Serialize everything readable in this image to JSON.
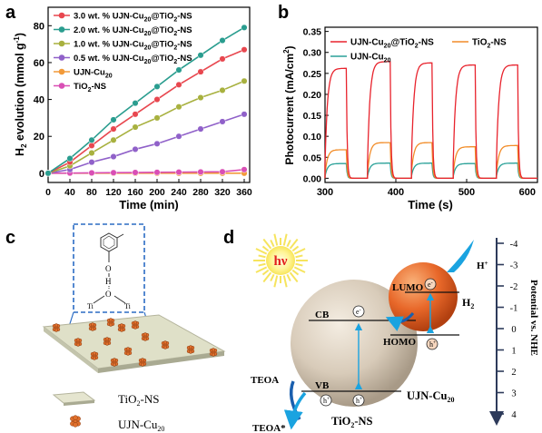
{
  "panels": {
    "a": "a",
    "b": "b",
    "c": "c",
    "d": "d"
  },
  "chart_data": [
    {
      "panel": "a",
      "type": "line",
      "xlabel": "Time (min)",
      "ylabel_main": "H",
      "ylabel_sub": "2",
      "ylabel_rest": " evolution (mmol g",
      "ylabel_sup": "-1",
      "ylabel_end": ")",
      "xlim": [
        0,
        370
      ],
      "ylim": [
        -5,
        90
      ],
      "xticks": [
        "0",
        "40",
        "80",
        "120",
        "160",
        "200",
        "240",
        "280",
        "320",
        "360"
      ],
      "yticks": [
        "0",
        "20",
        "40",
        "60",
        "80"
      ],
      "x": [
        0,
        40,
        80,
        120,
        160,
        200,
        240,
        280,
        320,
        360
      ],
      "series": [
        {
          "name_main": "3.0 wt. % UJN-Cu",
          "name_sub": "20",
          "name_rest": "@TiO",
          "name_sub2": "2",
          "name_end": "-NS",
          "color": "#e8474f",
          "values": [
            0,
            6,
            15,
            24,
            32,
            40,
            48,
            55,
            62,
            67
          ]
        },
        {
          "name_main": "2.0 wt. % UJN-Cu",
          "name_sub": "20",
          "name_rest": "@TiO",
          "name_sub2": "2",
          "name_end": "-NS",
          "color": "#2a9d8f",
          "values": [
            0,
            8,
            18,
            29,
            38,
            47,
            56,
            64,
            72,
            79
          ]
        },
        {
          "name_main": "1.0 wt. % UJN-Cu",
          "name_sub": "20",
          "name_rest": "@TiO",
          "name_sub2": "2",
          "name_end": "-NS",
          "color": "#a8b13f",
          "values": [
            0,
            4,
            11,
            18,
            25,
            30,
            36,
            41,
            45,
            50
          ]
        },
        {
          "name_main": "0.5 wt. % UJN-Cu",
          "name_sub": "20",
          "name_rest": "@TiO",
          "name_sub2": "2",
          "name_end": "-NS",
          "color": "#9061c9",
          "values": [
            0,
            2,
            6,
            9,
            13,
            16,
            20,
            24,
            28,
            32
          ]
        },
        {
          "name_main": "UJN-Cu",
          "name_sub": "20",
          "name_rest": "",
          "name_sub2": "",
          "name_end": "",
          "color": "#f29a3a",
          "values": [
            0,
            0,
            0,
            0,
            0,
            0,
            0,
            0,
            0,
            0
          ]
        },
        {
          "name_main": "TiO",
          "name_sub": "2",
          "name_rest": "-NS",
          "name_sub2": "",
          "name_end": "",
          "color": "#d94fb5",
          "values": [
            0,
            0.1,
            0.2,
            0.3,
            0.4,
            0.5,
            0.6,
            0.7,
            0.8,
            2
          ]
        }
      ]
    },
    {
      "panel": "b",
      "type": "line",
      "xlabel": "Time (s)",
      "ylabel": "Photocurrent (mA/cm",
      "ylabel_sup": "2",
      "ylabel_end": ")",
      "xlim": [
        300,
        600
      ],
      "ylim": [
        -0.01,
        0.36
      ],
      "xticks": [
        "300",
        "400",
        "500",
        "600"
      ],
      "yticks": [
        "0.00",
        "0.05",
        "0.10",
        "0.15",
        "0.20",
        "0.25",
        "0.30",
        "0.35"
      ],
      "on_intervals": [
        [
          300,
          330
        ],
        [
          360,
          392
        ],
        [
          422,
          451
        ],
        [
          481,
          512
        ],
        [
          542,
          572
        ]
      ],
      "series": [
        {
          "name_main": "UJN-Cu",
          "name_sub": "20",
          "name_rest": "@TiO",
          "name_sub2": "2",
          "name_end": "-NS",
          "color": "#e8232d",
          "plateau": [
            0.262,
            0.278,
            0.275,
            0.27,
            0.27
          ]
        },
        {
          "name_main": "TiO",
          "name_sub": "2",
          "name_rest": "-NS",
          "name_sub2": "",
          "name_end": "",
          "color": "#f28c28",
          "plateau": [
            0.068,
            0.085,
            0.085,
            0.075,
            0.078
          ]
        },
        {
          "name_main": "UJN-Cu",
          "name_sub": "20",
          "name_rest": "",
          "name_sub2": "",
          "name_end": "",
          "color": "#2aa198",
          "plateau": [
            0.035,
            0.036,
            0.036,
            0.035,
            0.036
          ]
        }
      ]
    }
  ],
  "panel_c": {
    "legend": [
      {
        "name_main": "TiO",
        "name_sub": "2",
        "name_rest": "-NS"
      },
      {
        "name_main": "UJN-Cu",
        "name_sub": "20",
        "name_rest": ""
      }
    ],
    "molecule": {
      "o": "O",
      "h": "H",
      "ti1": "Ti",
      "ti2": "Ti",
      "o2": "O"
    }
  },
  "panel_d": {
    "hv": "hν",
    "cb": "CB",
    "vb": "VB",
    "e_minus": "e",
    "h_plus": "h",
    "lumo": "LUMO",
    "homo": "HOMO",
    "hplus": "H",
    "h2": "H",
    "h2_sub": "2",
    "teoa": "TEOA",
    "teoa_star": "TEOA*",
    "ujn": "UJN-Cu",
    "ujn_sub": "20",
    "tio2": "TiO",
    "tio2_sub": "2",
    "tio2_rest": "-NS",
    "potential_label": "Potential vs. NHE",
    "potential_ticks": [
      "-4",
      "-3",
      "-2",
      "-1",
      "0",
      "1",
      "2",
      "3",
      "4"
    ]
  }
}
